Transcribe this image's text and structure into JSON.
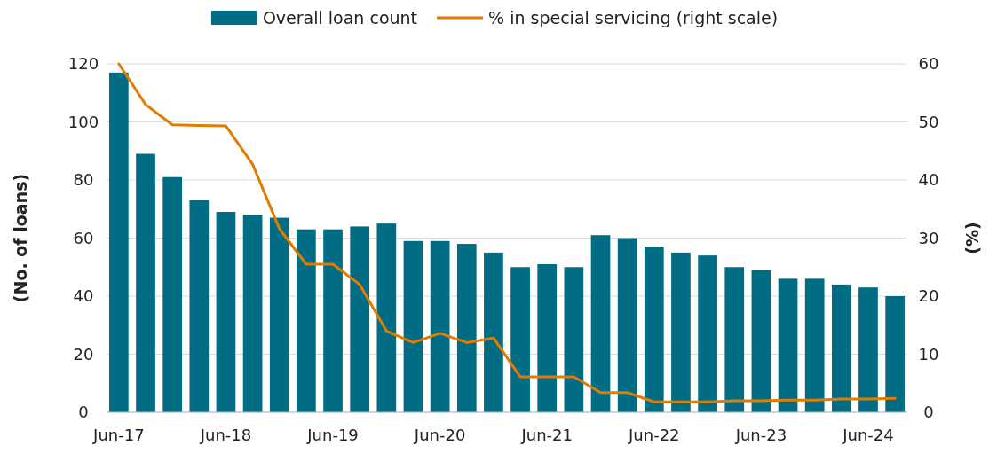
{
  "chart_data": {
    "type": "bar",
    "ylabel": "(No. of loans)",
    "y2label": "(%)",
    "categories": [
      "Jun-17",
      null,
      null,
      null,
      "Jun-18",
      null,
      null,
      null,
      "Jun-19",
      null,
      null,
      null,
      "Jun-20",
      null,
      null,
      null,
      "Jun-21",
      null,
      null,
      null,
      "Jun-22",
      null,
      null,
      null,
      "Jun-23",
      null,
      null,
      null,
      "Jun-24",
      null
    ],
    "series": [
      {
        "name": "Overall loan count",
        "color": "#006d85",
        "values": [
          117,
          89,
          81,
          73,
          69,
          68,
          67,
          63,
          63,
          64,
          65,
          59,
          59,
          58,
          55,
          50,
          51,
          50,
          61,
          60,
          57,
          55,
          54,
          50,
          49,
          46,
          46,
          44,
          43,
          40
        ]
      },
      {
        "name": "% in special servicing (right scale)",
        "type": "line",
        "axis": "y2",
        "color": "#e07c00",
        "values": [
          60,
          53,
          49.5,
          49.4,
          49.3,
          42.7,
          31.6,
          25.5,
          25.5,
          22,
          14,
          12,
          13.6,
          12,
          12.8,
          6.1,
          6.1,
          6.1,
          3.4,
          3.4,
          1.8,
          1.8,
          1.8,
          2,
          2,
          2.1,
          2.1,
          2.3,
          2.3,
          2.4
        ]
      }
    ],
    "ylim": [
      0,
      120
    ],
    "yticks": [
      0,
      20,
      40,
      60,
      80,
      100,
      120
    ],
    "y2lim": [
      0,
      60
    ],
    "y2ticks": [
      0,
      10,
      20,
      30,
      40,
      50,
      60
    ],
    "grid": "y",
    "legend": "top",
    "marker": "none",
    "line_style": "solid"
  }
}
